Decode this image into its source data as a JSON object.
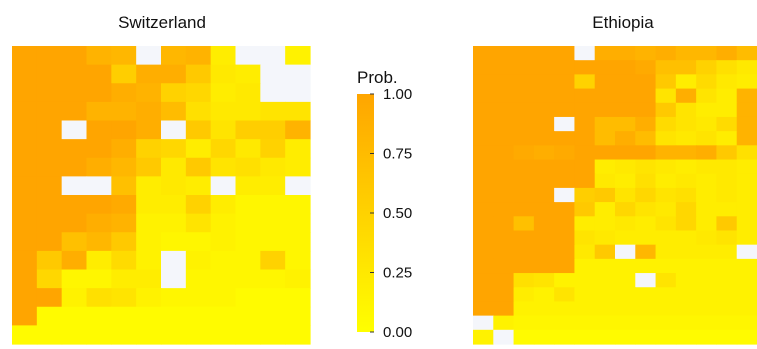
{
  "chart_data": [
    {
      "type": "heatmap",
      "title": "Switzerland",
      "grid": [
        [
          1,
          1,
          1,
          0.85,
          0.8,
          -1,
          0.8,
          0.85,
          0.2,
          -1,
          -1,
          0.15
        ],
        [
          1,
          1,
          1,
          1,
          0.55,
          0.9,
          0.9,
          0.6,
          0.25,
          0.2,
          -1,
          -1
        ],
        [
          1,
          1,
          1,
          1,
          0.9,
          0.85,
          0.5,
          0.45,
          0.2,
          0.25,
          -1,
          -1
        ],
        [
          1,
          1,
          1,
          0.85,
          0.85,
          0.9,
          0.75,
          0.35,
          0.25,
          0.25,
          0.3,
          0.3
        ],
        [
          1,
          1,
          -1,
          1,
          1,
          0.9,
          -1,
          0.6,
          0.3,
          0.55,
          0.55,
          0.85
        ],
        [
          1,
          1,
          1,
          1,
          0.9,
          0.5,
          0.45,
          0.2,
          0.45,
          0.25,
          0.5,
          0.2
        ],
        [
          1,
          1,
          1,
          0.9,
          0.8,
          0.6,
          0.25,
          0.6,
          0.3,
          0.35,
          0.25,
          0.2
        ],
        [
          1,
          1,
          -1,
          -1,
          0.7,
          0.2,
          0.25,
          0.2,
          -1,
          0.2,
          0.2,
          -1
        ],
        [
          1,
          1,
          1,
          1,
          0.95,
          0.2,
          0.2,
          0.5,
          0.2,
          0.1,
          0.1,
          0.1
        ],
        [
          1,
          1,
          1,
          0.9,
          0.85,
          0.15,
          0.15,
          0.3,
          0.15,
          0.1,
          0.1,
          0.1
        ],
        [
          1,
          1,
          0.7,
          0.8,
          0.6,
          0.15,
          0.1,
          0.1,
          0.15,
          0.1,
          0.1,
          0.1
        ],
        [
          1,
          0.6,
          0.9,
          0.2,
          0.4,
          0.15,
          -1,
          0.15,
          0.1,
          0.1,
          0.5,
          0.1
        ],
        [
          1,
          0.45,
          0.1,
          0.1,
          0.2,
          0.2,
          -1,
          0.1,
          0.1,
          0.1,
          0.1,
          0.15
        ],
        [
          1,
          1,
          0.15,
          0.35,
          0.3,
          0.15,
          0.1,
          0.1,
          0.1,
          0.05,
          0.05,
          0.05
        ],
        [
          1,
          0.05,
          0.05,
          0.05,
          0.05,
          0.05,
          0.05,
          0.05,
          0.05,
          0.05,
          0.05,
          0.05
        ],
        [
          0.05,
          0.05,
          0.05,
          0.05,
          0.05,
          0.05,
          0.05,
          0.05,
          0.05,
          0.05,
          0.05,
          0.05
        ]
      ]
    },
    {
      "type": "heatmap",
      "title": "Ethiopia",
      "grid": [
        [
          1,
          1,
          1,
          1,
          1,
          -1,
          0.9,
          0.9,
          0.85,
          0.9,
          0.8,
          0.8,
          0.9,
          0.75
        ],
        [
          1,
          1,
          1,
          1,
          1,
          1,
          1,
          1,
          0.95,
          0.7,
          0.7,
          0.5,
          0.35,
          0.25
        ],
        [
          1,
          1,
          1,
          1,
          1,
          0.5,
          1,
          1,
          1,
          0.6,
          0.2,
          0.4,
          0.25,
          0.2
        ],
        [
          1,
          1,
          1,
          1,
          1,
          1,
          1,
          1,
          1,
          0.3,
          0.9,
          0.3,
          0.2,
          0.85
        ],
        [
          1,
          1,
          1,
          1,
          1,
          1,
          1,
          1,
          1,
          0.6,
          0.3,
          0.2,
          0.2,
          0.85
        ],
        [
          1,
          1,
          1,
          1,
          -1,
          1,
          0.75,
          0.75,
          0.9,
          0.4,
          0.3,
          0.25,
          0.4,
          0.85
        ],
        [
          1,
          1,
          1,
          1,
          1,
          1,
          0.75,
          0.9,
          0.75,
          0.3,
          0.25,
          0.3,
          0.2,
          0.85
        ],
        [
          1,
          1,
          0.95,
          0.9,
          0.95,
          1,
          1,
          1,
          1,
          0.85,
          0.85,
          0.9,
          0.6,
          0.35
        ],
        [
          1,
          1,
          1,
          1,
          1,
          1,
          0.2,
          0.25,
          0.3,
          0.25,
          0.2,
          0.25,
          0.25,
          0.2
        ],
        [
          1,
          1,
          1,
          1,
          1,
          1,
          0.25,
          0.2,
          0.35,
          0.2,
          0.25,
          0.2,
          0.25,
          0.2
        ],
        [
          1,
          1,
          1,
          1,
          -1,
          0.55,
          0.6,
          0.3,
          0.45,
          0.3,
          0.35,
          0.2,
          0.25,
          0.2
        ],
        [
          1,
          1,
          1,
          1,
          1,
          0.6,
          0.2,
          0.45,
          0.3,
          0.25,
          0.45,
          0.2,
          0.2,
          0.2
        ],
        [
          1,
          1,
          0.7,
          1,
          1,
          0.2,
          0.2,
          0.25,
          0.2,
          0.3,
          0.45,
          0.2,
          0.6,
          0.2
        ],
        [
          1,
          1,
          1,
          1,
          1,
          0.3,
          0.25,
          0.2,
          0.2,
          0.2,
          0.2,
          0.25,
          0.3,
          0.2
        ],
        [
          1,
          1,
          1,
          1,
          1,
          0.25,
          0.6,
          -1,
          0.8,
          0.2,
          0.2,
          0.2,
          0.2,
          -1
        ],
        [
          1,
          1,
          1,
          1,
          1,
          0.15,
          0.15,
          0.15,
          0.15,
          0.15,
          0.15,
          0.15,
          0.15,
          0.15
        ],
        [
          1,
          1,
          0.35,
          0.3,
          0.15,
          0.15,
          0.15,
          0.15,
          -1,
          0.3,
          0.15,
          0.15,
          0.15,
          0.15
        ],
        [
          1,
          1,
          0.2,
          0.15,
          0.3,
          0.15,
          0.15,
          0.15,
          0.15,
          0.15,
          0.15,
          0.15,
          0.15,
          0.15
        ],
        [
          1,
          1,
          0.15,
          0.15,
          0.15,
          0.15,
          0.15,
          0.15,
          0.15,
          0.15,
          0.15,
          0.15,
          0.15,
          0.15
        ],
        [
          -1,
          0.15,
          0.1,
          0.1,
          0.1,
          0.1,
          0.1,
          0.1,
          0.1,
          0.1,
          0.1,
          0.1,
          0.1,
          0.1
        ],
        [
          0.15,
          -1,
          0.05,
          0.05,
          0.05,
          0.05,
          0.05,
          0.05,
          0.05,
          0.05,
          0.05,
          0.05,
          0.05,
          0.05
        ]
      ]
    }
  ],
  "legend": {
    "title": "Prob.",
    "ticks": [
      {
        "value": 1.0,
        "label": "1.00"
      },
      {
        "value": 0.75,
        "label": "0.75"
      },
      {
        "value": 0.5,
        "label": "0.50"
      },
      {
        "value": 0.25,
        "label": "0.25"
      },
      {
        "value": 0.0,
        "label": "0.00"
      }
    ],
    "low_color": "#ffff00",
    "high_color": "#ffa500",
    "missing_color": "#f4f6fb"
  }
}
